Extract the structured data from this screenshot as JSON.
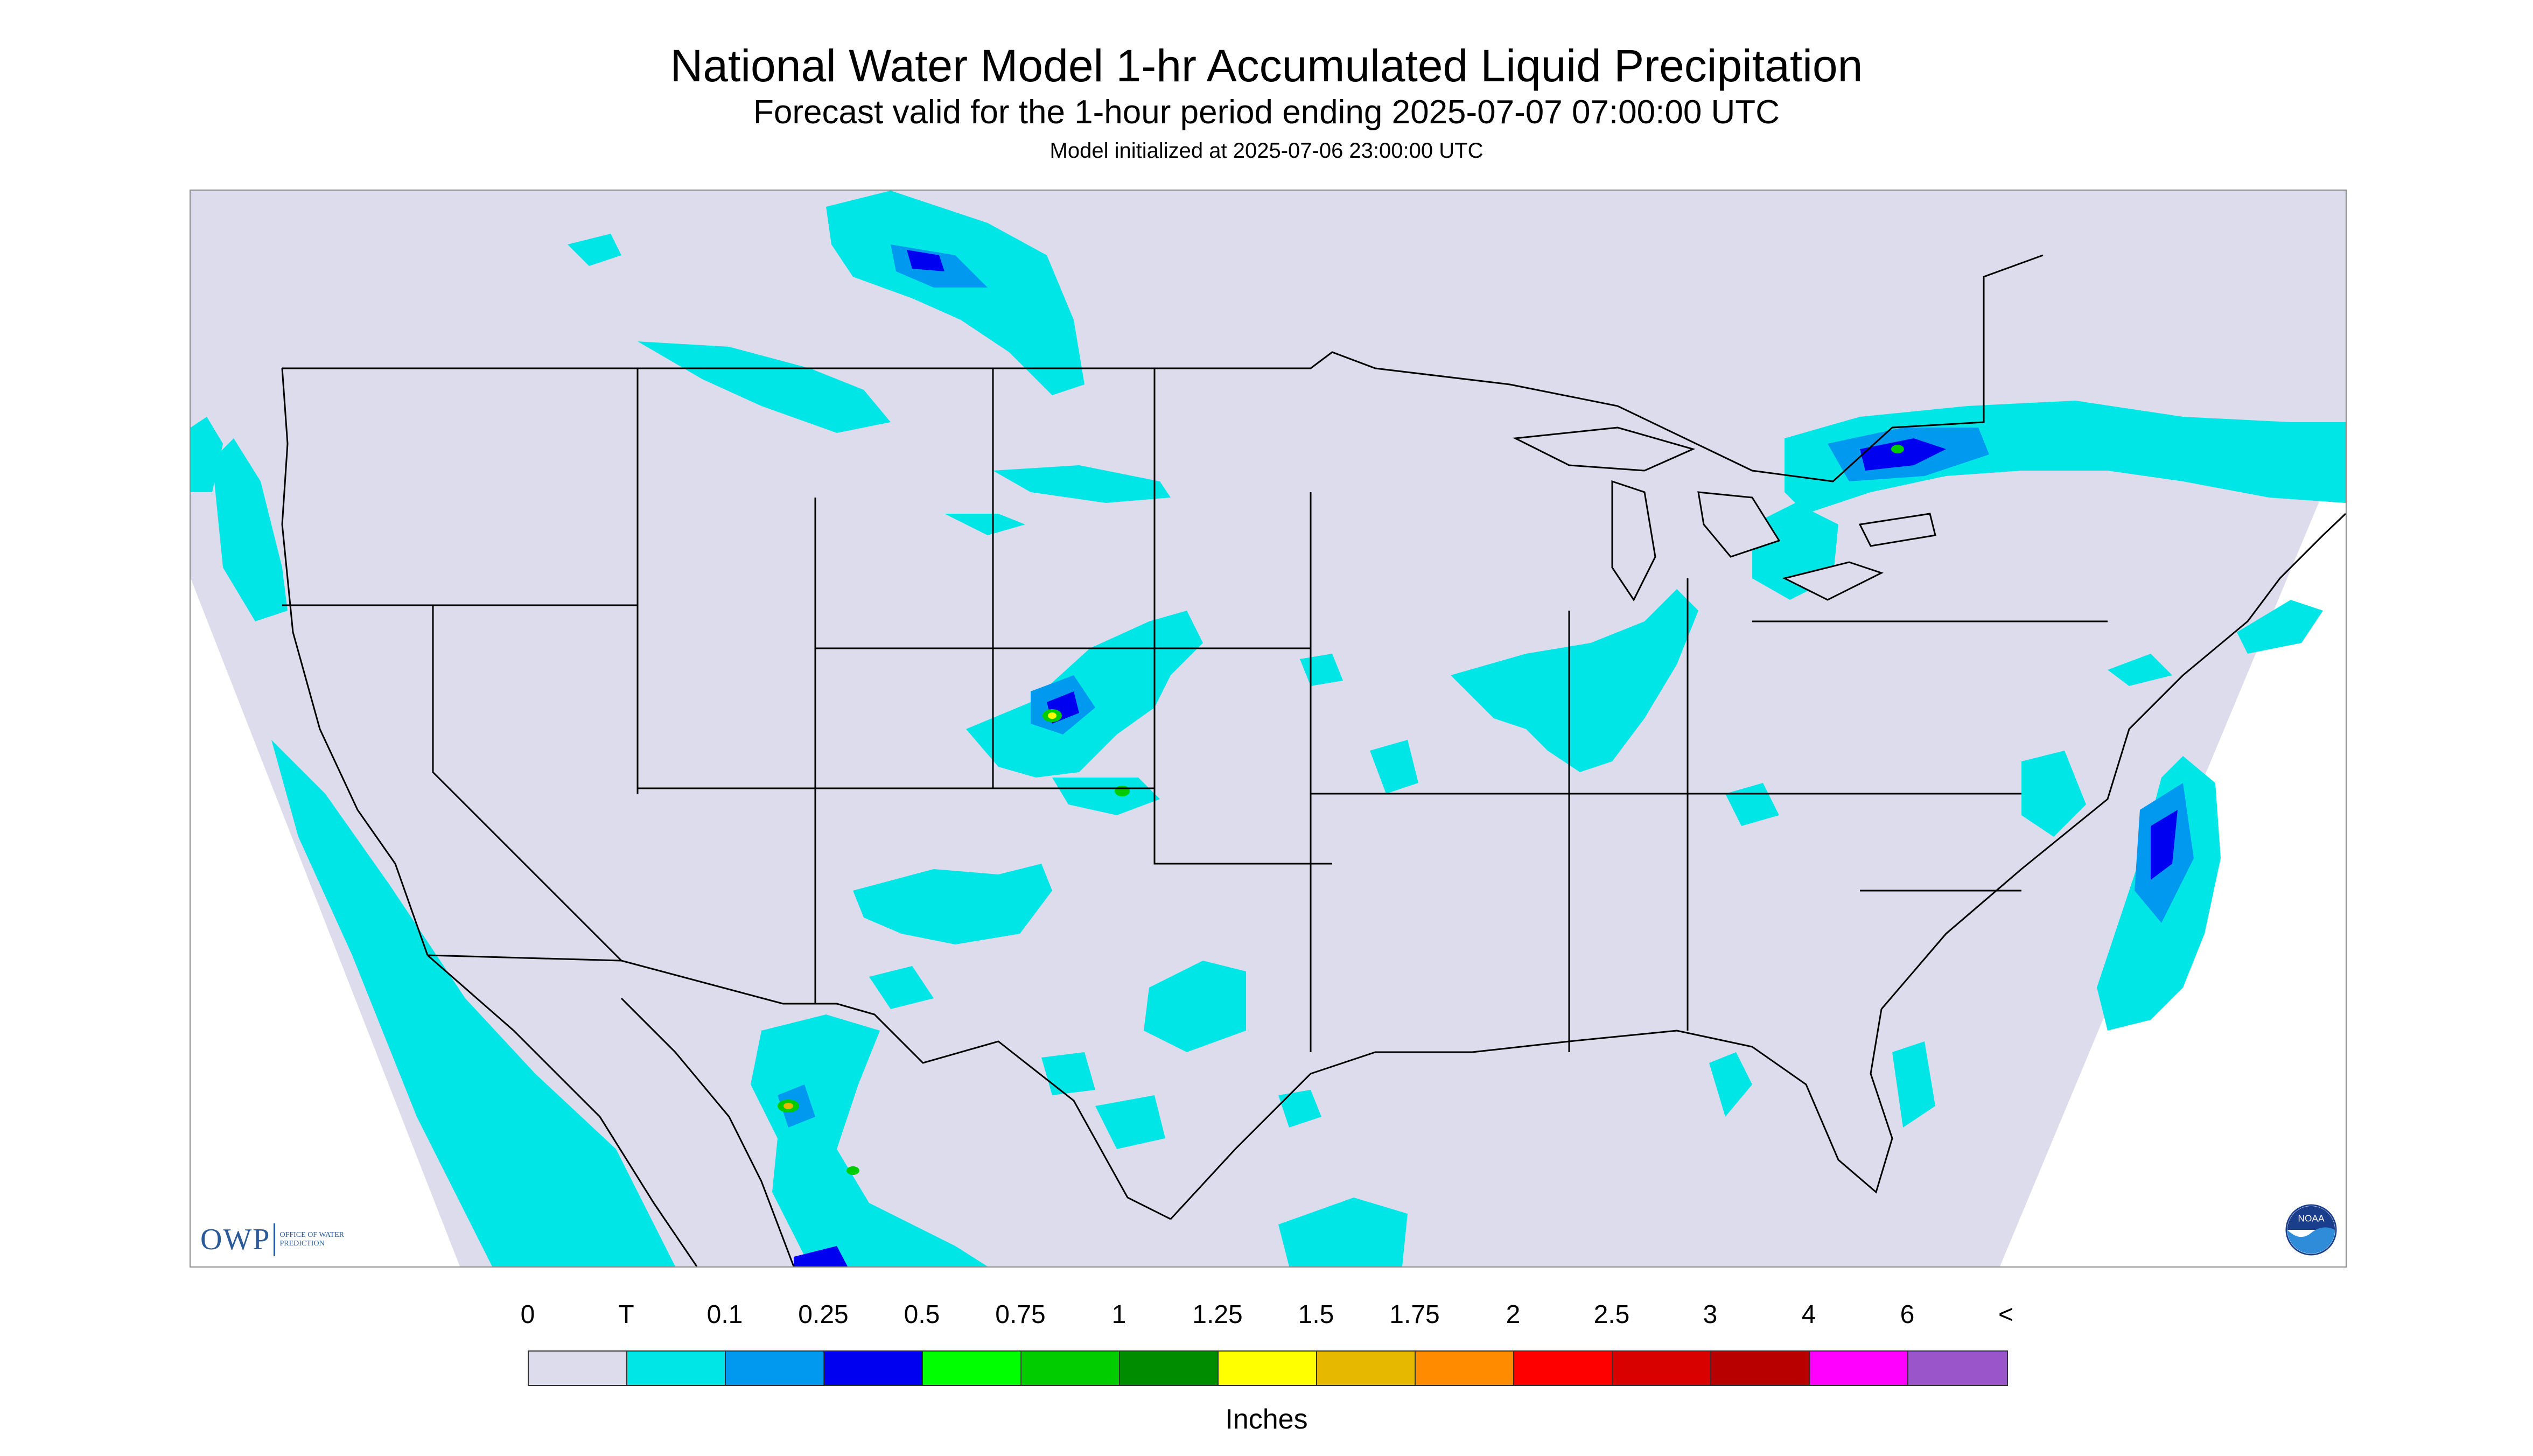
{
  "header": {
    "title": "National Water Model 1-hr Accumulated Liquid Precipitation",
    "subtitle": "Forecast valid for the 1-hour period ending 2025-07-07 07:00:00 UTC",
    "init_line": "Model initialized at 2025-07-06 23:00:00 UTC"
  },
  "map": {
    "background_color": "#dcdcec",
    "outside_color": "#ffffff",
    "boundary_color": "#000000"
  },
  "logos": {
    "owp_text": "OWP",
    "owp_small_text": "Office of Water Prediction",
    "noaa_text": "NOAA"
  },
  "legend": {
    "labels": [
      "0",
      "T",
      "0.1",
      "0.25",
      "0.5",
      "0.75",
      "1",
      "1.25",
      "1.5",
      "1.75",
      "2",
      "2.5",
      "3",
      "4",
      "6",
      "<"
    ],
    "colors": [
      "#dcdcec",
      "#00e6e6",
      "#0099f0",
      "#0000f0",
      "#00ff00",
      "#00cc00",
      "#008c00",
      "#ffff00",
      "#e6b800",
      "#ff8c00",
      "#ff0000",
      "#d90000",
      "#b80000",
      "#ff00ff",
      "#9955c9"
    ],
    "units": "Inches"
  }
}
